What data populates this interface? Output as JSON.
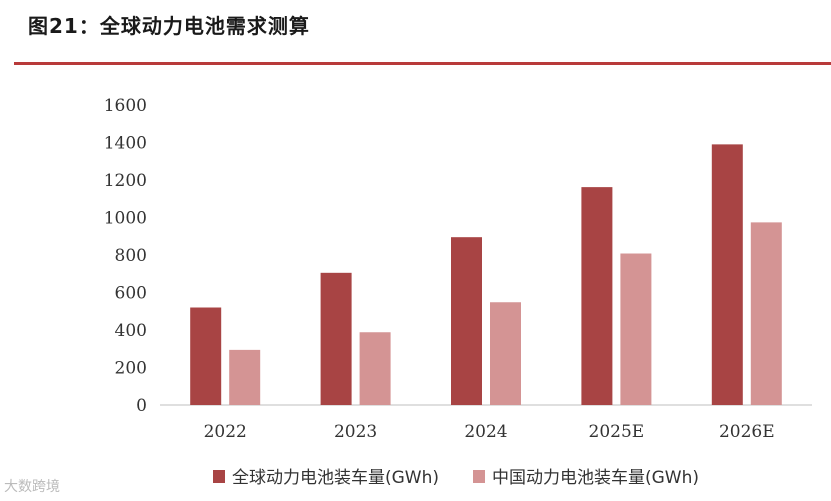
{
  "title": "图21：全球动力电池需求测算",
  "watermark": "大数跨境",
  "chart_data": {
    "type": "bar",
    "categories": [
      "2022",
      "2023",
      "2024",
      "2025E",
      "2026E"
    ],
    "series": [
      {
        "name": "全球动力电池装车量(GWh)",
        "color": "#a84444",
        "values": [
          520,
          705,
          895,
          1162,
          1390
        ]
      },
      {
        "name": "中国动力电池装车量(GWh)",
        "color": "#d49494",
        "values": [
          294,
          388,
          548,
          808,
          974
        ]
      }
    ],
    "ylim": [
      0,
      1600
    ],
    "yticks": [
      "0",
      "200",
      "400",
      "600",
      "800",
      "1000",
      "1200",
      "1400",
      "1600"
    ],
    "grid": false,
    "legend": "bottom"
  }
}
